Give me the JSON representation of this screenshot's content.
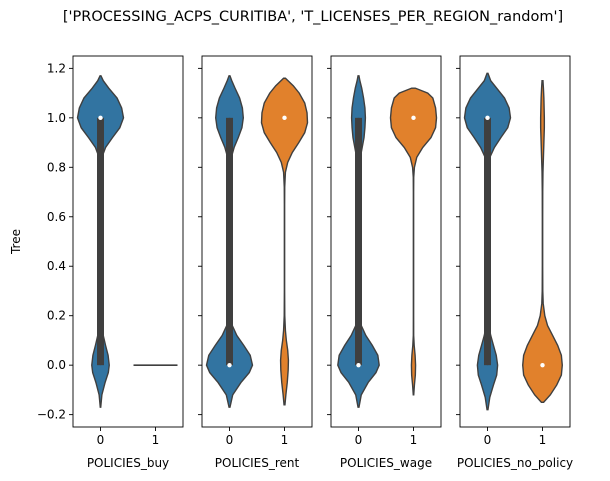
{
  "figure": {
    "suptitle": "['PROCESSING_ACPS_CURITIBA', 'T_LICENSES_PER_REGION_random']",
    "colors": {
      "group0": "#3274a1",
      "group1": "#e1812c",
      "inner": "#3f3f3f",
      "median": "#ffffff",
      "axes": "#000000"
    }
  },
  "chart_data": [
    {
      "type": "violin",
      "title": "",
      "xlabel": "POLICIES_buy",
      "ylabel": "Tree",
      "categories": [
        "0",
        "1"
      ],
      "ylim": [
        -0.25,
        1.25
      ],
      "yticks": [
        -0.2,
        0.0,
        0.2,
        0.4,
        0.6,
        0.8,
        1.0,
        1.2
      ],
      "violins": [
        {
          "category": "0",
          "median": 1.0,
          "q1": 0.0,
          "q3": 1.0,
          "whisker_low": 0.0,
          "whisker_high": 1.0,
          "min": -0.17,
          "max": 1.17,
          "profile": [
            [
              -0.17,
              0.01
            ],
            [
              -0.12,
              0.06
            ],
            [
              -0.07,
              0.2
            ],
            [
              -0.03,
              0.34
            ],
            [
              0.0,
              0.38
            ],
            [
              0.04,
              0.33
            ],
            [
              0.08,
              0.22
            ],
            [
              0.12,
              0.12
            ],
            [
              0.16,
              0.05
            ],
            [
              0.2,
              0.02
            ],
            [
              0.25,
              0.008
            ],
            [
              0.35,
              0.006
            ],
            [
              0.5,
              0.006
            ],
            [
              0.65,
              0.006
            ],
            [
              0.75,
              0.008
            ],
            [
              0.8,
              0.02
            ],
            [
              0.84,
              0.06
            ],
            [
              0.88,
              0.22
            ],
            [
              0.92,
              0.52
            ],
            [
              0.96,
              0.84
            ],
            [
              1.0,
              1.0
            ],
            [
              1.04,
              0.92
            ],
            [
              1.08,
              0.72
            ],
            [
              1.12,
              0.36
            ],
            [
              1.15,
              0.12
            ],
            [
              1.17,
              0.02
            ]
          ]
        },
        {
          "category": "1",
          "constant": 0.0
        }
      ]
    },
    {
      "type": "violin",
      "title": "",
      "xlabel": "POLICIES_rent",
      "ylabel": "",
      "categories": [
        "0",
        "1"
      ],
      "ylim": [
        -0.25,
        1.25
      ],
      "violins": [
        {
          "category": "0",
          "median": 0.0,
          "q1": 0.0,
          "q3": 1.0,
          "whisker_low": 0.0,
          "whisker_high": 1.0,
          "min": -0.17,
          "max": 1.17,
          "profile": [
            [
              -0.17,
              0.02
            ],
            [
              -0.12,
              0.14
            ],
            [
              -0.07,
              0.5
            ],
            [
              -0.03,
              0.86
            ],
            [
              0.0,
              1.0
            ],
            [
              0.04,
              0.9
            ],
            [
              0.08,
              0.62
            ],
            [
              0.12,
              0.32
            ],
            [
              0.16,
              0.12
            ],
            [
              0.2,
              0.04
            ],
            [
              0.25,
              0.01
            ],
            [
              0.35,
              0.008
            ],
            [
              0.5,
              0.008
            ],
            [
              0.65,
              0.008
            ],
            [
              0.75,
              0.01
            ],
            [
              0.8,
              0.03
            ],
            [
              0.84,
              0.08
            ],
            [
              0.88,
              0.2
            ],
            [
              0.92,
              0.38
            ],
            [
              0.96,
              0.54
            ],
            [
              1.0,
              0.6
            ],
            [
              1.04,
              0.56
            ],
            [
              1.08,
              0.44
            ],
            [
              1.12,
              0.24
            ],
            [
              1.15,
              0.1
            ],
            [
              1.17,
              0.02
            ]
          ]
        },
        {
          "category": "1",
          "median": 1.0,
          "q1": 1.0,
          "q3": 1.0,
          "whisker_low": 1.0,
          "whisker_high": 1.0,
          "min": -0.16,
          "max": 1.16,
          "profile": [
            [
              -0.16,
              0.02
            ],
            [
              -0.12,
              0.06
            ],
            [
              -0.07,
              0.12
            ],
            [
              -0.02,
              0.16
            ],
            [
              0.02,
              0.17
            ],
            [
              0.06,
              0.14
            ],
            [
              0.1,
              0.08
            ],
            [
              0.14,
              0.04
            ],
            [
              0.2,
              0.012
            ],
            [
              0.3,
              0.006
            ],
            [
              0.5,
              0.006
            ],
            [
              0.65,
              0.006
            ],
            [
              0.72,
              0.01
            ],
            [
              0.78,
              0.04
            ],
            [
              0.82,
              0.14
            ],
            [
              0.86,
              0.34
            ],
            [
              0.9,
              0.62
            ],
            [
              0.94,
              0.88
            ],
            [
              0.98,
              1.0
            ],
            [
              1.02,
              0.98
            ],
            [
              1.06,
              0.88
            ],
            [
              1.1,
              0.64
            ],
            [
              1.13,
              0.38
            ],
            [
              1.16,
              0.04
            ]
          ]
        }
      ]
    },
    {
      "type": "violin",
      "title": "",
      "xlabel": "POLICIES_wage",
      "ylabel": "",
      "categories": [
        "0",
        "1"
      ],
      "ylim": [
        -0.25,
        1.25
      ],
      "violins": [
        {
          "category": "0",
          "median": 0.0,
          "q1": 0.0,
          "q3": 1.0,
          "whisker_low": 0.0,
          "whisker_high": 1.0,
          "min": -0.17,
          "max": 1.17,
          "profile": [
            [
              -0.17,
              0.02
            ],
            [
              -0.12,
              0.12
            ],
            [
              -0.07,
              0.42
            ],
            [
              -0.03,
              0.76
            ],
            [
              0.0,
              0.9
            ],
            [
              0.04,
              0.84
            ],
            [
              0.08,
              0.6
            ],
            [
              0.12,
              0.32
            ],
            [
              0.16,
              0.12
            ],
            [
              0.2,
              0.04
            ],
            [
              0.25,
              0.01
            ],
            [
              0.35,
              0.008
            ],
            [
              0.5,
              0.008
            ],
            [
              0.65,
              0.008
            ],
            [
              0.75,
              0.01
            ],
            [
              0.8,
              0.03
            ],
            [
              0.84,
              0.08
            ],
            [
              0.88,
              0.16
            ],
            [
              0.92,
              0.24
            ],
            [
              0.96,
              0.28
            ],
            [
              1.0,
              0.3
            ],
            [
              1.04,
              0.28
            ],
            [
              1.08,
              0.22
            ],
            [
              1.12,
              0.14
            ],
            [
              1.15,
              0.06
            ],
            [
              1.17,
              0.02
            ]
          ]
        },
        {
          "category": "1",
          "median": 1.0,
          "q1": 1.0,
          "q3": 1.0,
          "whisker_low": 1.0,
          "whisker_high": 1.0,
          "min": -0.12,
          "max": 1.12,
          "profile": [
            [
              -0.12,
              0.01
            ],
            [
              -0.08,
              0.04
            ],
            [
              -0.04,
              0.08
            ],
            [
              0.0,
              0.09
            ],
            [
              0.04,
              0.07
            ],
            [
              0.08,
              0.03
            ],
            [
              0.12,
              0.008
            ],
            [
              0.2,
              0.006
            ],
            [
              0.5,
              0.006
            ],
            [
              0.7,
              0.006
            ],
            [
              0.76,
              0.01
            ],
            [
              0.8,
              0.04
            ],
            [
              0.84,
              0.14
            ],
            [
              0.88,
              0.4
            ],
            [
              0.92,
              0.76
            ],
            [
              0.96,
              0.96
            ],
            [
              1.0,
              1.0
            ],
            [
              1.04,
              0.96
            ],
            [
              1.08,
              0.84
            ],
            [
              1.1,
              0.62
            ],
            [
              1.12,
              0.08
            ]
          ]
        }
      ]
    },
    {
      "type": "violin",
      "title": "",
      "xlabel": "POLICIES_no_policy",
      "ylabel": "",
      "categories": [
        "0",
        "1"
      ],
      "ylim": [
        -0.25,
        1.25
      ],
      "violins": [
        {
          "category": "0",
          "median": 1.0,
          "q1": 0.0,
          "q3": 1.0,
          "whisker_low": 0.0,
          "whisker_high": 1.0,
          "min": -0.18,
          "max": 1.18,
          "profile": [
            [
              -0.18,
              0.02
            ],
            [
              -0.13,
              0.1
            ],
            [
              -0.08,
              0.26
            ],
            [
              -0.04,
              0.4
            ],
            [
              0.0,
              0.44
            ],
            [
              0.04,
              0.38
            ],
            [
              0.08,
              0.26
            ],
            [
              0.12,
              0.14
            ],
            [
              0.16,
              0.06
            ],
            [
              0.2,
              0.02
            ],
            [
              0.25,
              0.008
            ],
            [
              0.35,
              0.006
            ],
            [
              0.5,
              0.006
            ],
            [
              0.65,
              0.006
            ],
            [
              0.75,
              0.01
            ],
            [
              0.8,
              0.03
            ],
            [
              0.84,
              0.1
            ],
            [
              0.88,
              0.3
            ],
            [
              0.92,
              0.58
            ],
            [
              0.96,
              0.88
            ],
            [
              1.0,
              1.0
            ],
            [
              1.04,
              0.94
            ],
            [
              1.08,
              0.74
            ],
            [
              1.12,
              0.4
            ],
            [
              1.15,
              0.14
            ],
            [
              1.18,
              0.02
            ]
          ]
        },
        {
          "category": "1",
          "median": 0.0,
          "q1": 0.0,
          "q3": 0.0,
          "whisker_low": 0.0,
          "whisker_high": 0.0,
          "min": -0.15,
          "max": 1.15,
          "profile": [
            [
              -0.15,
              0.05
            ],
            [
              -0.12,
              0.34
            ],
            [
              -0.08,
              0.62
            ],
            [
              -0.04,
              0.82
            ],
            [
              0.0,
              0.86
            ],
            [
              0.04,
              0.82
            ],
            [
              0.08,
              0.66
            ],
            [
              0.12,
              0.44
            ],
            [
              0.16,
              0.22
            ],
            [
              0.2,
              0.1
            ],
            [
              0.25,
              0.03
            ],
            [
              0.3,
              0.012
            ],
            [
              0.4,
              0.008
            ],
            [
              0.5,
              0.008
            ],
            [
              0.6,
              0.008
            ],
            [
              0.7,
              0.01
            ],
            [
              0.78,
              0.02
            ],
            [
              0.84,
              0.04
            ],
            [
              0.9,
              0.06
            ],
            [
              0.96,
              0.08
            ],
            [
              1.0,
              0.08
            ],
            [
              1.04,
              0.07
            ],
            [
              1.08,
              0.06
            ],
            [
              1.12,
              0.04
            ],
            [
              1.15,
              0.02
            ]
          ]
        }
      ]
    }
  ]
}
